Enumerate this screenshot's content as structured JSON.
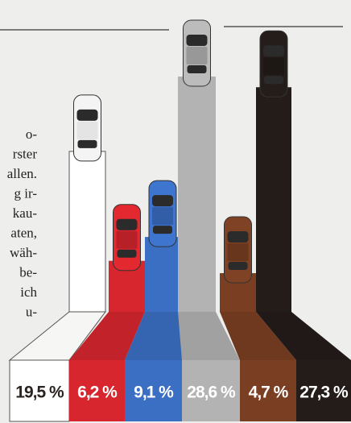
{
  "chart_data": {
    "type": "bar",
    "values": [
      19.5,
      6.2,
      9.1,
      28.6,
      4.7,
      27.3
    ],
    "value_labels": [
      "19,5 %",
      "6,2 %",
      "9,1 %",
      "28,6 %",
      "4,7 %",
      "27,3 %"
    ],
    "colors": [
      "#ffffff",
      "#d8262e",
      "#3b6fc4",
      "#b3b3b3",
      "#7a3f22",
      "#231c19"
    ]
  },
  "side_text": [
    "o-",
    "rster",
    "allen.",
    "g ir-",
    "kau-",
    "aten,",
    "wäh-",
    "be-",
    "ich",
    "u-"
  ]
}
